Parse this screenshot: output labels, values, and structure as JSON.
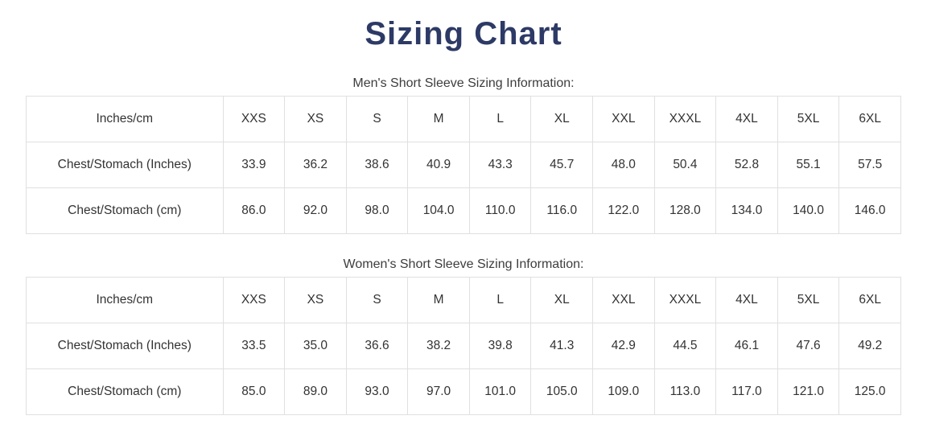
{
  "page": {
    "title": "Sizing Chart",
    "title_color": "#2d3a66",
    "table_border_color": "#e0e0e0",
    "text_color": "#333333"
  },
  "tables": [
    {
      "heading": "Men's Short Sleeve Sizing Information:",
      "columns": [
        "Inches/cm",
        "XXS",
        "XS",
        "S",
        "M",
        "L",
        "XL",
        "XXL",
        "XXXL",
        "4XL",
        "5XL",
        "6XL"
      ],
      "rows": [
        {
          "label": "Chest/Stomach (Inches)",
          "values": [
            "33.9",
            "36.2",
            "38.6",
            "40.9",
            "43.3",
            "45.7",
            "48.0",
            "50.4",
            "52.8",
            "55.1",
            "57.5"
          ]
        },
        {
          "label": "Chest/Stomach (cm)",
          "values": [
            "86.0",
            "92.0",
            "98.0",
            "104.0",
            "110.0",
            "116.0",
            "122.0",
            "128.0",
            "134.0",
            "140.0",
            "146.0"
          ]
        }
      ]
    },
    {
      "heading": "Women's Short Sleeve Sizing Information:",
      "columns": [
        "Inches/cm",
        "XXS",
        "XS",
        "S",
        "M",
        "L",
        "XL",
        "XXL",
        "XXXL",
        "4XL",
        "5XL",
        "6XL"
      ],
      "rows": [
        {
          "label": "Chest/Stomach (Inches)",
          "values": [
            "33.5",
            "35.0",
            "36.6",
            "38.2",
            "39.8",
            "41.3",
            "42.9",
            "44.5",
            "46.1",
            "47.6",
            "49.2"
          ]
        },
        {
          "label": "Chest/Stomach (cm)",
          "values": [
            "85.0",
            "89.0",
            "93.0",
            "97.0",
            "101.0",
            "105.0",
            "109.0",
            "113.0",
            "117.0",
            "121.0",
            "125.0"
          ]
        }
      ]
    }
  ]
}
